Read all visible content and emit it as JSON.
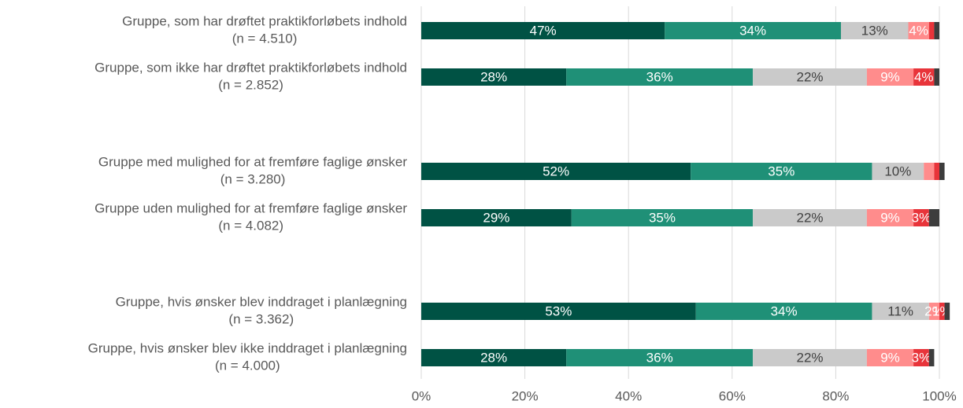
{
  "chart_data": {
    "type": "stacked-bar-horizontal",
    "categories": [
      [
        "Gruppe, som har drøftet praktikforløbets indhold",
        "(n = 4.510)"
      ],
      [
        "Gruppe, som ikke har drøftet praktikforløbets indhold",
        "(n = 2.852)"
      ],
      [
        "Gruppe med mulighed for at fremføre faglige ønsker",
        "(n = 3.280)"
      ],
      [
        "Gruppe uden mulighed for at fremføre faglige ønsker",
        "(n = 4.082)"
      ],
      [
        "Gruppe, hvis ønsker blev inddraget i planlægning",
        "(n = 3.362)"
      ],
      [
        "Gruppe, hvis ønsker blev ikke inddraget i planlægning",
        "(n = 4.000)"
      ]
    ],
    "series": [
      {
        "color": "#005244",
        "values": [
          47,
          28,
          52,
          29,
          53,
          28
        ],
        "value_labels": [
          "47%",
          "28%",
          "52%",
          "29%",
          "53%",
          "28%"
        ]
      },
      {
        "color": "#1f9077",
        "values": [
          34,
          36,
          35,
          35,
          34,
          36
        ],
        "value_labels": [
          "34%",
          "36%",
          "35%",
          "35%",
          "34%",
          "36%"
        ]
      },
      {
        "color": "#cacaca",
        "values": [
          13,
          22,
          10,
          22,
          11,
          22
        ],
        "value_labels": [
          "13%",
          "22%",
          "10%",
          "22%",
          "11%",
          "22%"
        ]
      },
      {
        "color": "#ff8c8c",
        "values": [
          4,
          9,
          2,
          9,
          2,
          9
        ],
        "value_labels": [
          "4%",
          "9%",
          null,
          "9%",
          "2%",
          "9%"
        ]
      },
      {
        "color": "#e8343a",
        "values": [
          1,
          4,
          1,
          3,
          1,
          3
        ],
        "value_labels": [
          null,
          "4%",
          null,
          "3%",
          "1%",
          "3%"
        ]
      },
      {
        "color": "#3d3d3d",
        "values": [
          1,
          1,
          1,
          2,
          1,
          1
        ],
        "value_labels": [
          null,
          null,
          null,
          null,
          null,
          null
        ]
      }
    ],
    "xlim": [
      0,
      100
    ],
    "xticks": [
      {
        "value": 0,
        "label": "0%"
      },
      {
        "value": 20,
        "label": "20%"
      },
      {
        "value": 40,
        "label": "40%"
      },
      {
        "value": 60,
        "label": "60%"
      },
      {
        "value": 80,
        "label": "80%"
      },
      {
        "value": 100,
        "label": "100%"
      }
    ],
    "grid": true
  }
}
